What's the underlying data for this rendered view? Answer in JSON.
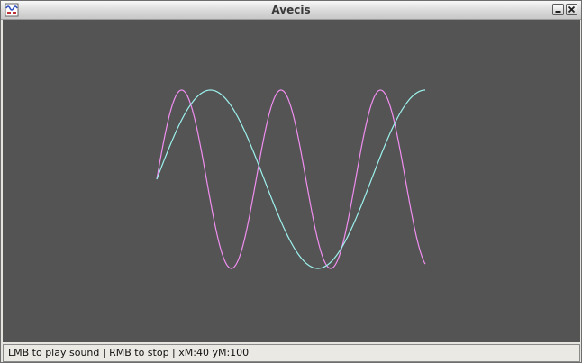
{
  "window": {
    "title": "Avecis",
    "app_icon": "wave-app-icon",
    "buttons": [
      {
        "name": "minimize-button",
        "icon": "minimize-icon"
      },
      {
        "name": "close-button",
        "icon": "close-icon"
      }
    ]
  },
  "canvas": {
    "background_color": "#545454",
    "waves": [
      {
        "color": "#f08ef0",
        "cycles": 2.7,
        "phase_deg": 0,
        "shape": "sine"
      },
      {
        "color": "#9df2ee",
        "cycles": 1.25,
        "phase_deg": 0,
        "shape": "sine"
      }
    ]
  },
  "statusbar": {
    "text": "LMB to play sound | RMB to stop | xM:40 yM:100"
  }
}
